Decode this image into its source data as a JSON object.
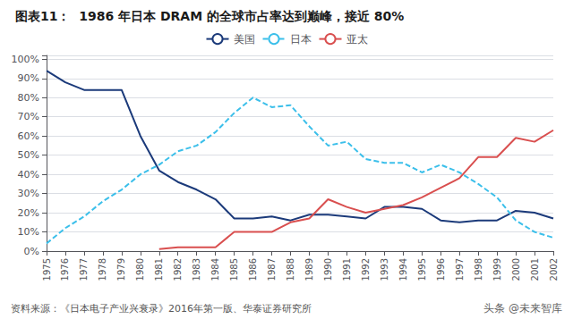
{
  "chart_data": {
    "type": "line",
    "title": "图表11：  1986 年日本 DRAM 的全球市占率达到巅峰，接近 80%",
    "annotations": [
      "资料来源：《日本电子产业兴衰录》2016年第一版、华泰证券研究所",
      "头条 @未来智库"
    ],
    "x": [
      1975,
      1976,
      1977,
      1978,
      1979,
      1980,
      1981,
      1982,
      1983,
      1984,
      1985,
      1986,
      1987,
      1988,
      1989,
      1990,
      1991,
      1992,
      1993,
      1994,
      1995,
      1996,
      1997,
      1998,
      1999,
      2000,
      2001,
      2002
    ],
    "xlim": [
      1975,
      2002
    ],
    "xticks": [
      1975,
      1976,
      1977,
      1978,
      1979,
      1980,
      1981,
      1982,
      1983,
      1984,
      1985,
      1986,
      1987,
      1988,
      1989,
      1990,
      1991,
      1992,
      1993,
      1994,
      1995,
      1996,
      1997,
      1998,
      1999,
      2000,
      2001,
      2002
    ],
    "series": [
      {
        "name": "美国",
        "color": "#1b3a7a",
        "line_style": "solid",
        "values": [
          0.94,
          0.88,
          0.84,
          0.84,
          0.84,
          0.6,
          0.42,
          0.36,
          0.32,
          0.27,
          0.17,
          0.17,
          0.18,
          0.16,
          0.19,
          0.19,
          0.18,
          0.17,
          0.23,
          0.23,
          0.22,
          0.16,
          0.15,
          0.16,
          0.16,
          0.21,
          0.2,
          0.17
        ]
      },
      {
        "name": "日本",
        "color": "#3bbfea",
        "line_style": "dashed",
        "values": [
          0.04,
          0.12,
          0.18,
          0.26,
          0.32,
          0.4,
          0.45,
          0.52,
          0.55,
          0.62,
          0.72,
          0.8,
          0.75,
          0.76,
          0.65,
          0.55,
          0.57,
          0.48,
          0.46,
          0.46,
          0.41,
          0.45,
          0.41,
          0.35,
          0.28,
          0.16,
          0.1,
          0.07
        ]
      },
      {
        "name": "亚太",
        "color": "#d94f4f",
        "line_style": "solid",
        "values": [
          null,
          null,
          null,
          null,
          null,
          null,
          0.01,
          0.02,
          0.02,
          0.02,
          0.1,
          0.1,
          0.1,
          0.15,
          0.17,
          0.27,
          0.23,
          0.2,
          0.22,
          0.24,
          0.28,
          0.33,
          0.38,
          0.49,
          0.49,
          0.59,
          0.57,
          0.63
        ]
      }
    ],
    "ylim": [
      0,
      1.02
    ],
    "yticks": [
      {
        "value": 0,
        "label": "0%"
      },
      {
        "value": 0.1,
        "label": "10%"
      },
      {
        "value": 0.2,
        "label": "20%"
      },
      {
        "value": 0.3,
        "label": "30%"
      },
      {
        "value": 0.4,
        "label": "40%"
      },
      {
        "value": 0.5,
        "label": "50%"
      },
      {
        "value": 0.6,
        "label": "60%"
      },
      {
        "value": 0.7,
        "label": "70%"
      },
      {
        "value": 0.8,
        "label": "80%"
      },
      {
        "value": 0.9,
        "label": "90%"
      },
      {
        "value": 1.0,
        "label": "100%"
      }
    ],
    "grid": true,
    "legend": "top"
  }
}
